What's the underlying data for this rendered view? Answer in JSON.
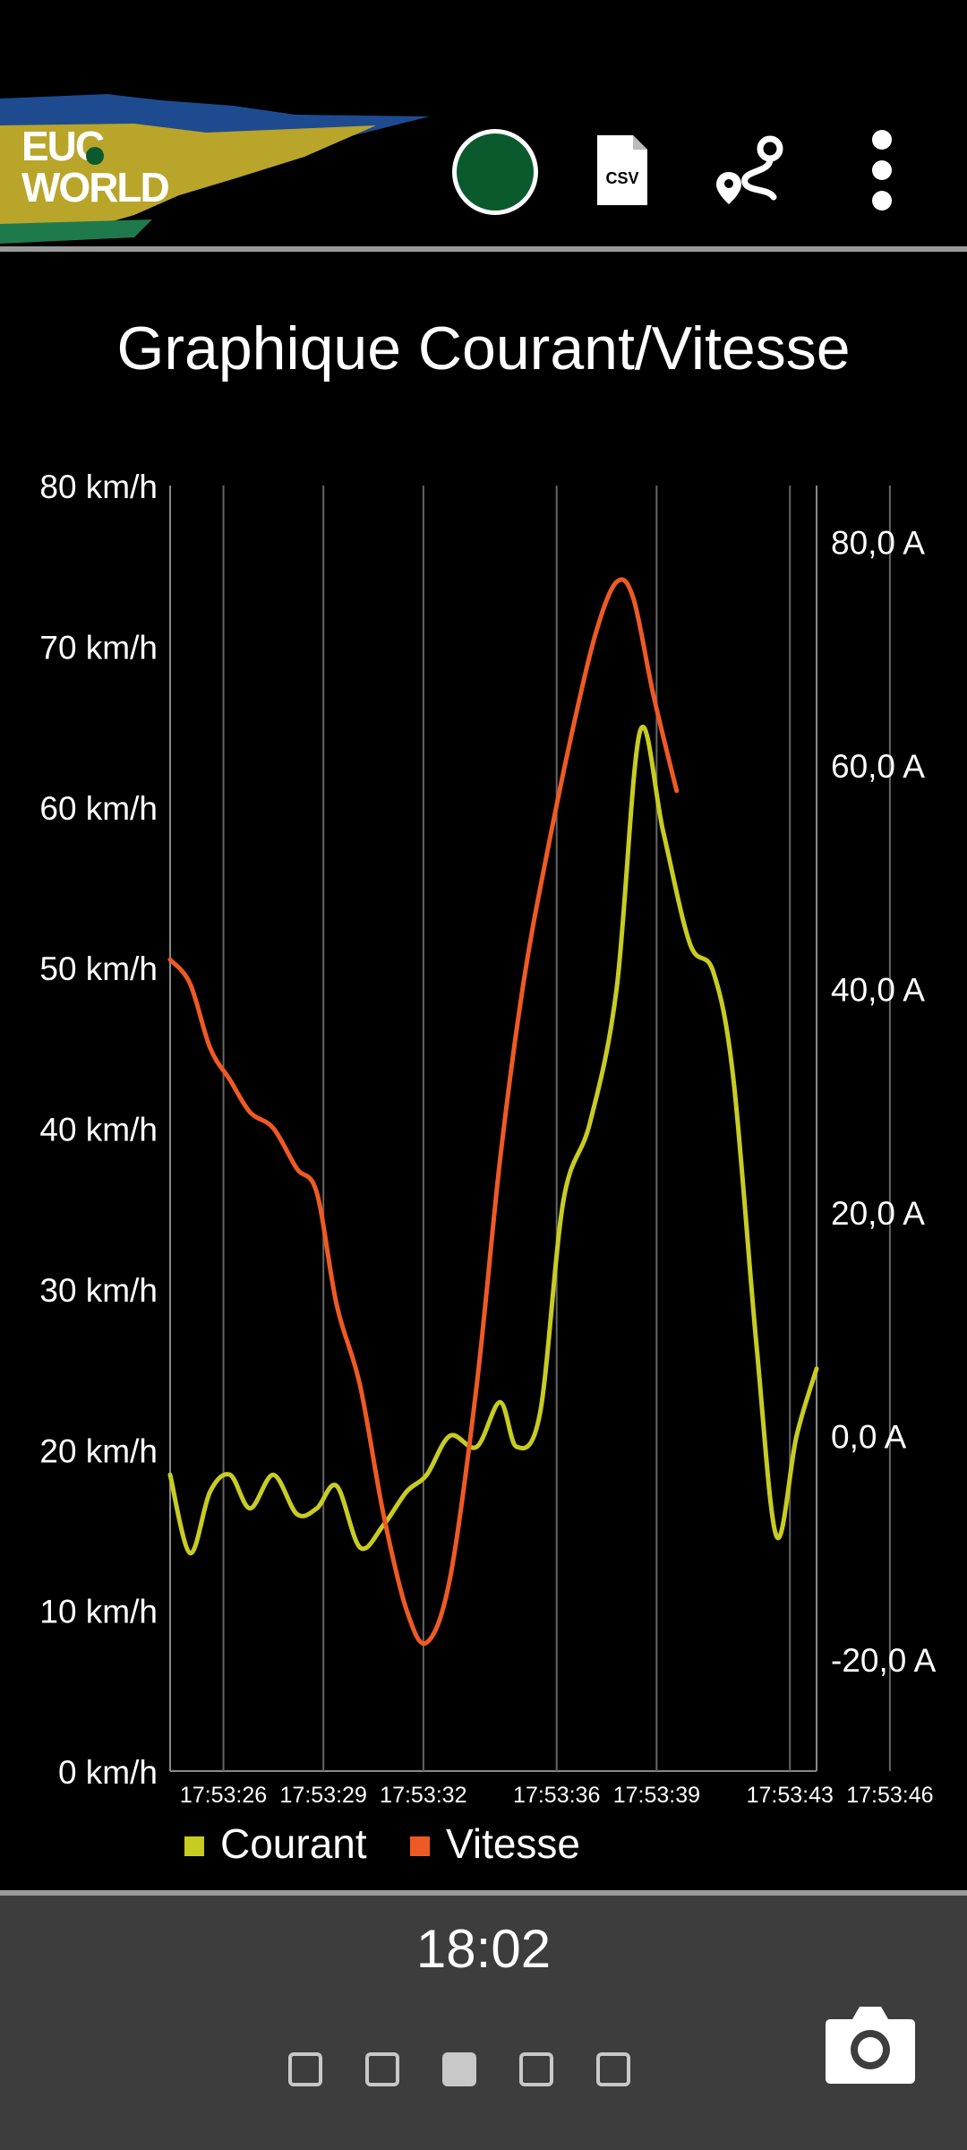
{
  "header": {
    "logo_line1": "EUC",
    "logo_line2": "WORLD",
    "status_color": "#0b5a2e",
    "icons": [
      "connection-status-icon",
      "csv-file-icon",
      "route-icon",
      "more-vert-icon"
    ],
    "csv_label": "CSV"
  },
  "title": "Graphique Courant/Vitesse",
  "chart_data": {
    "type": "line",
    "x": [
      "17:53:26",
      "17:53:29",
      "17:53:32",
      "17:53:36",
      "17:53:39",
      "17:53:43",
      "17:53:46"
    ],
    "left_axis": {
      "label": "",
      "ylim": [
        0,
        80
      ],
      "ticks": [
        "0 km/h",
        "10 km/h",
        "20 km/h",
        "30 km/h",
        "40 km/h",
        "50 km/h",
        "60 km/h",
        "70 km/h",
        "80 km/h"
      ]
    },
    "right_axis": {
      "label": "",
      "ylim": [
        -30,
        85
      ],
      "ticks": [
        "-20,0 A",
        "0,0 A",
        "20,0 A",
        "40,0 A",
        "60,0 A",
        "80,0 A"
      ]
    },
    "series": [
      {
        "name": "Courant",
        "axis": "right",
        "color": "#c8cc22",
        "points": [
          [
            24.4,
            -3.5
          ],
          [
            25.0,
            -10.5
          ],
          [
            25.6,
            -5
          ],
          [
            26.2,
            -3.5
          ],
          [
            26.8,
            -6.5
          ],
          [
            27.5,
            -3.5
          ],
          [
            28.2,
            -7
          ],
          [
            28.8,
            -6.5
          ],
          [
            29.4,
            -4.5
          ],
          [
            30.1,
            -10
          ],
          [
            30.8,
            -8
          ],
          [
            31.5,
            -5
          ],
          [
            32.1,
            -3.5
          ],
          [
            32.8,
            0
          ],
          [
            33.6,
            -1
          ],
          [
            34.3,
            3
          ],
          [
            34.8,
            -1
          ],
          [
            35.5,
            2
          ],
          [
            36.2,
            21
          ],
          [
            37.0,
            28
          ],
          [
            37.8,
            40
          ],
          [
            38.5,
            63
          ],
          [
            39.2,
            54
          ],
          [
            40.0,
            44
          ],
          [
            40.7,
            41.5
          ],
          [
            41.3,
            32
          ],
          [
            42.0,
            8
          ],
          [
            42.6,
            -9
          ],
          [
            43.2,
            0
          ],
          [
            43.8,
            6
          ]
        ]
      },
      {
        "name": "Vitesse",
        "axis": "left",
        "color": "#ee5a24",
        "points": [
          [
            24.4,
            50.5
          ],
          [
            25.0,
            49
          ],
          [
            25.6,
            45
          ],
          [
            26.2,
            43
          ],
          [
            26.8,
            41
          ],
          [
            27.5,
            40
          ],
          [
            28.2,
            37.5
          ],
          [
            28.8,
            36
          ],
          [
            29.4,
            29
          ],
          [
            30.1,
            24
          ],
          [
            30.8,
            16
          ],
          [
            31.5,
            10
          ],
          [
            32.1,
            8
          ],
          [
            32.8,
            12
          ],
          [
            33.6,
            24
          ],
          [
            34.3,
            38
          ],
          [
            35.0,
            49
          ],
          [
            35.7,
            57
          ],
          [
            36.5,
            65
          ],
          [
            37.2,
            71
          ],
          [
            37.8,
            74
          ],
          [
            38.3,
            73
          ],
          [
            38.9,
            67
          ],
          [
            39.6,
            61
          ]
        ]
      }
    ],
    "legend": {
      "placement": "bottom-left",
      "items": [
        {
          "name": "Courant",
          "color": "#c8cc22"
        },
        {
          "name": "Vitesse",
          "color": "#ee5a24"
        }
      ]
    },
    "grid": {
      "vertical": true,
      "horizontal": false
    }
  },
  "footer": {
    "clock": "18:02",
    "pages": 5,
    "active_page": 3,
    "camera_icon": "camera-icon"
  }
}
